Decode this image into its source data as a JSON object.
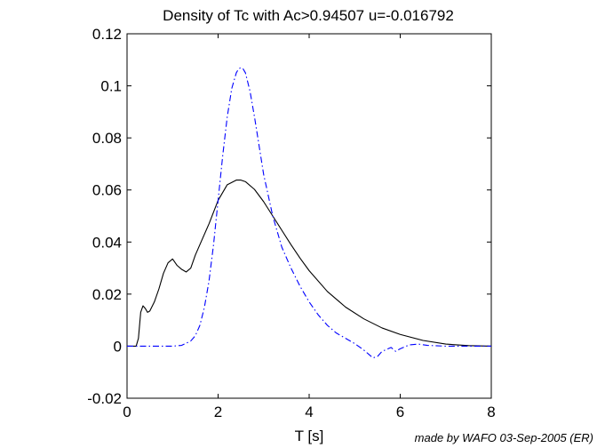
{
  "figure": {
    "credit": "made by WAFO 03-Sep-2005 (ER)"
  },
  "chart_data": {
    "type": "line",
    "title": "Density of Tc with Ac>0.94507  u=-0.016792",
    "xlabel": "T [s]",
    "ylabel": "",
    "xlim": [
      0,
      8
    ],
    "ylim": [
      -0.02,
      0.12
    ],
    "xticks": [
      0,
      2,
      4,
      6,
      8
    ],
    "xtick_labels": [
      "0",
      "2",
      "4",
      "6",
      "8"
    ],
    "yticks": [
      -0.02,
      0,
      0.02,
      0.04,
      0.06,
      0.08,
      0.1,
      0.12
    ],
    "ytick_labels": [
      "-0.02",
      "0",
      "0.02",
      "0.04",
      "0.06",
      "0.08",
      "0.1",
      "0.12"
    ],
    "grid": false,
    "series": [
      {
        "color": "#000000",
        "style": "solid",
        "x": [
          0,
          0.2,
          0.25,
          0.3,
          0.35,
          0.4,
          0.45,
          0.5,
          0.6,
          0.7,
          0.8,
          0.9,
          1.0,
          1.1,
          1.2,
          1.3,
          1.4,
          1.5,
          1.6,
          1.8,
          2.0,
          2.2,
          2.4,
          2.5,
          2.6,
          2.8,
          3.0,
          3.2,
          3.4,
          3.6,
          3.8,
          4.0,
          4.4,
          4.8,
          5.2,
          5.6,
          6.0,
          6.5,
          7.0,
          7.5,
          8.0
        ],
        "y": [
          0,
          0,
          0.003,
          0.013,
          0.0155,
          0.0145,
          0.013,
          0.0135,
          0.017,
          0.022,
          0.028,
          0.032,
          0.0335,
          0.031,
          0.0295,
          0.0285,
          0.03,
          0.035,
          0.039,
          0.047,
          0.056,
          0.062,
          0.0638,
          0.0638,
          0.0632,
          0.0602,
          0.0555,
          0.05,
          0.0445,
          0.039,
          0.0338,
          0.029,
          0.021,
          0.015,
          0.0105,
          0.007,
          0.0045,
          0.0022,
          0.0008,
          0.0002,
          0
        ]
      },
      {
        "color": "#0000ff",
        "style": "dashdot",
        "x": [
          0,
          1.0,
          1.2,
          1.4,
          1.5,
          1.6,
          1.7,
          1.8,
          1.9,
          2.0,
          2.1,
          2.2,
          2.3,
          2.4,
          2.45,
          2.5,
          2.55,
          2.6,
          2.7,
          2.8,
          2.9,
          3.0,
          3.2,
          3.4,
          3.6,
          3.8,
          4.0,
          4.2,
          4.4,
          4.6,
          4.8,
          5.0,
          5.2,
          5.3,
          5.4,
          5.5,
          5.6,
          5.8,
          5.9,
          6.0,
          6.2,
          6.4,
          6.6,
          7.0,
          8.0
        ],
        "y": [
          0,
          0,
          0.0003,
          0.002,
          0.004,
          0.008,
          0.015,
          0.025,
          0.039,
          0.056,
          0.073,
          0.088,
          0.099,
          0.105,
          0.1065,
          0.107,
          0.1065,
          0.105,
          0.098,
          0.088,
          0.077,
          0.066,
          0.05,
          0.038,
          0.03,
          0.023,
          0.017,
          0.012,
          0.008,
          0.005,
          0.003,
          0.001,
          -0.0015,
          -0.003,
          -0.0045,
          -0.004,
          -0.002,
          -0.0005,
          -0.002,
          -0.001,
          0.0005,
          0.0008,
          0.0003,
          0,
          0
        ]
      }
    ]
  }
}
